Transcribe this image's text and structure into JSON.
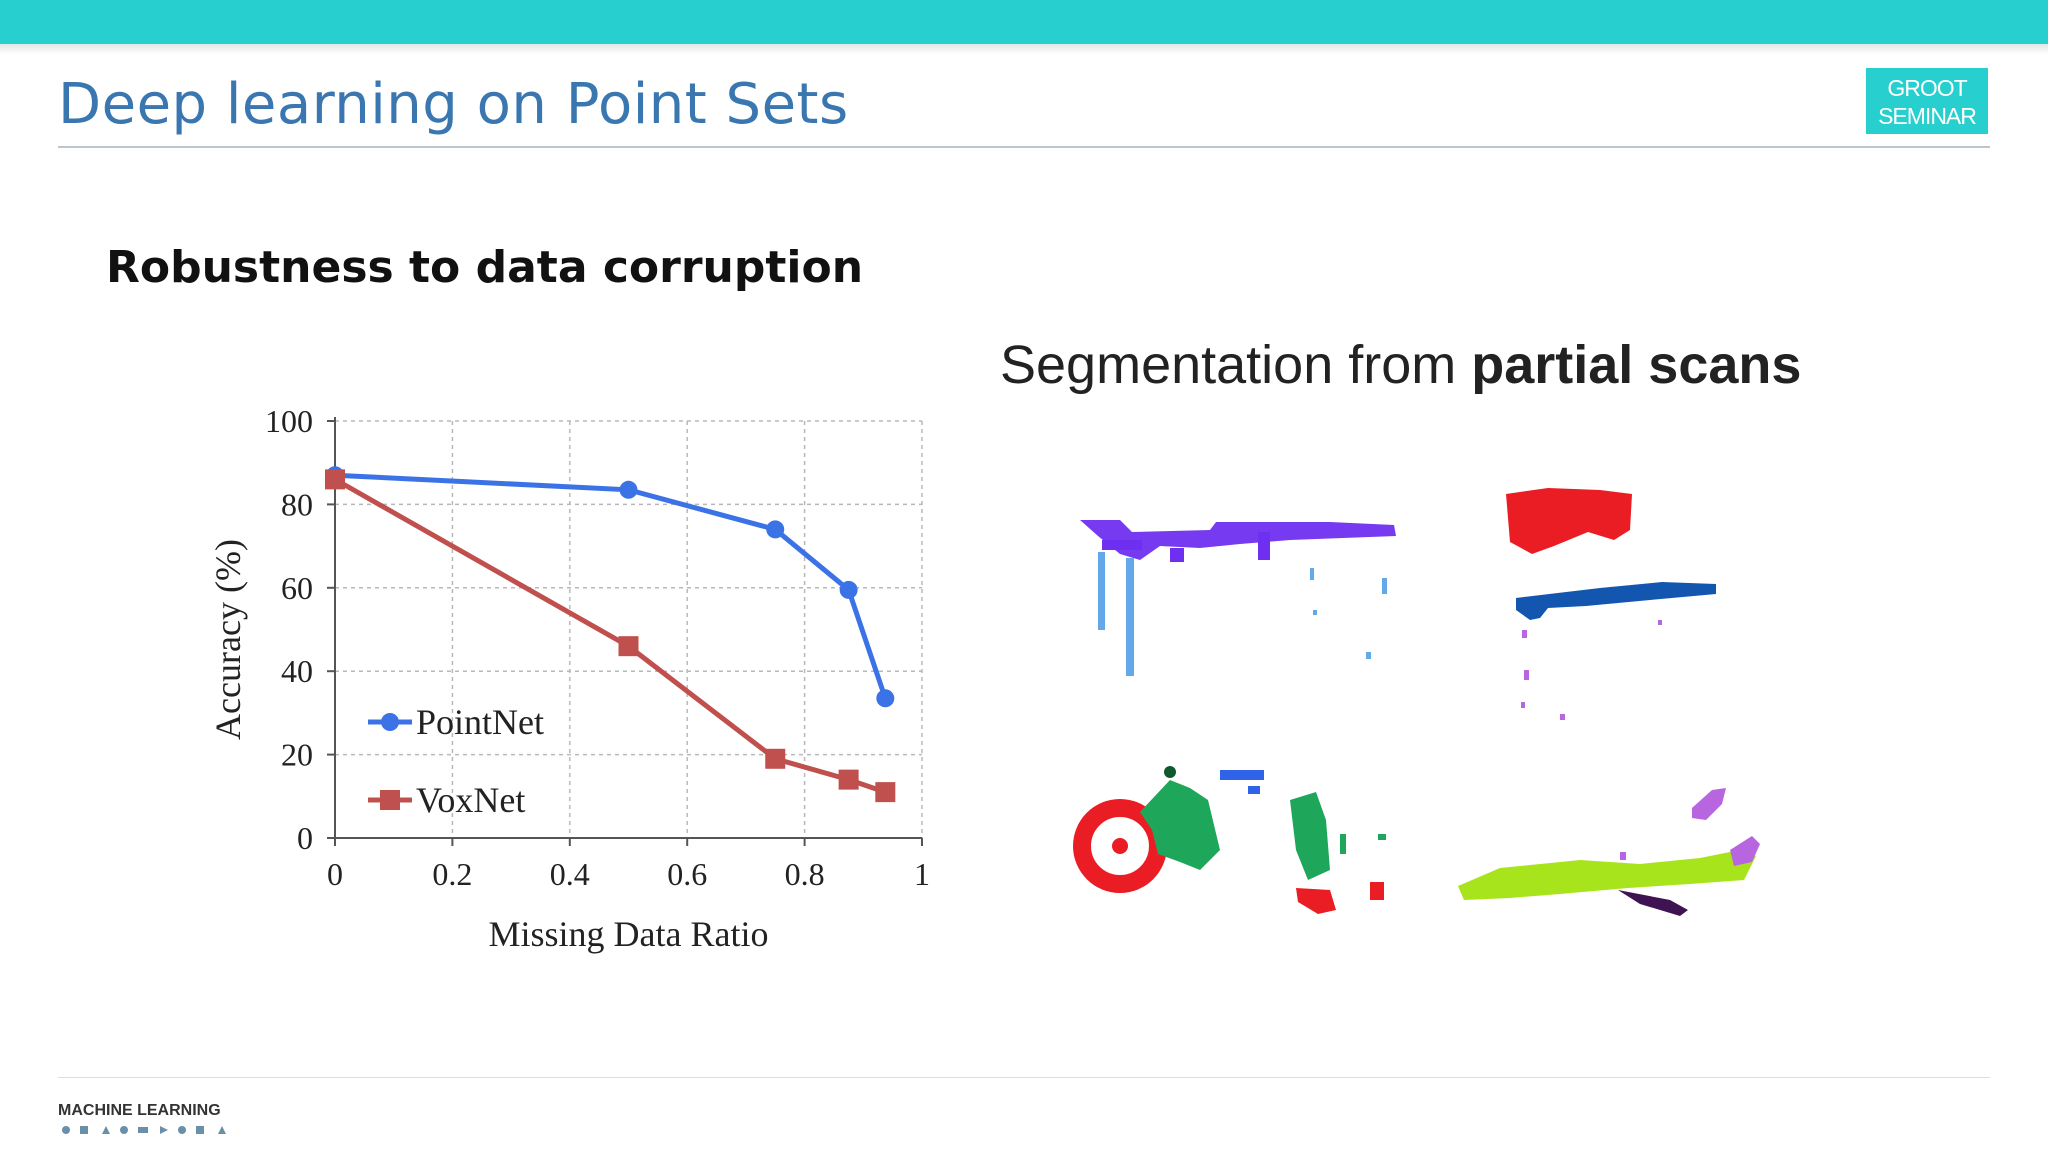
{
  "slide": {
    "title": "Deep learning on Point Sets",
    "badge_line1": "GROOT",
    "badge_line2": "SEMINAR",
    "subheading": "Robustness to data corruption"
  },
  "scans": {
    "title_regular": "Segmentation from ",
    "title_bold": "partial scans"
  },
  "footer": {
    "logo_text": "MACHINE LEARNING"
  },
  "colors": {
    "accent": "#27cfcf",
    "title": "#3a76b0",
    "pointnet": "#3b73e6",
    "voxnet": "#c0504d"
  },
  "chart_data": {
    "type": "line",
    "xlabel": "Missing Data Ratio",
    "ylabel": "Accuracy (%)",
    "xlim": [
      0,
      1
    ],
    "ylim": [
      0,
      100
    ],
    "xticks": [
      "0",
      "0.2",
      "0.4",
      "0.6",
      "0.8",
      "1"
    ],
    "yticks": [
      "0",
      "20",
      "40",
      "60",
      "80",
      "100"
    ],
    "grid": true,
    "legend_position": "bottom-left",
    "series": [
      {
        "name": "PointNet",
        "color": "#3b73e6",
        "marker": "circle",
        "x": [
          0,
          0.5,
          0.75,
          0.875,
          0.9375
        ],
        "y": [
          87,
          83.5,
          74,
          59.5,
          33.5
        ]
      },
      {
        "name": "VoxNet",
        "color": "#c0504d",
        "marker": "square",
        "x": [
          0,
          0.5,
          0.75,
          0.875,
          0.9375
        ],
        "y": [
          86,
          46,
          19,
          14,
          11
        ]
      }
    ]
  }
}
